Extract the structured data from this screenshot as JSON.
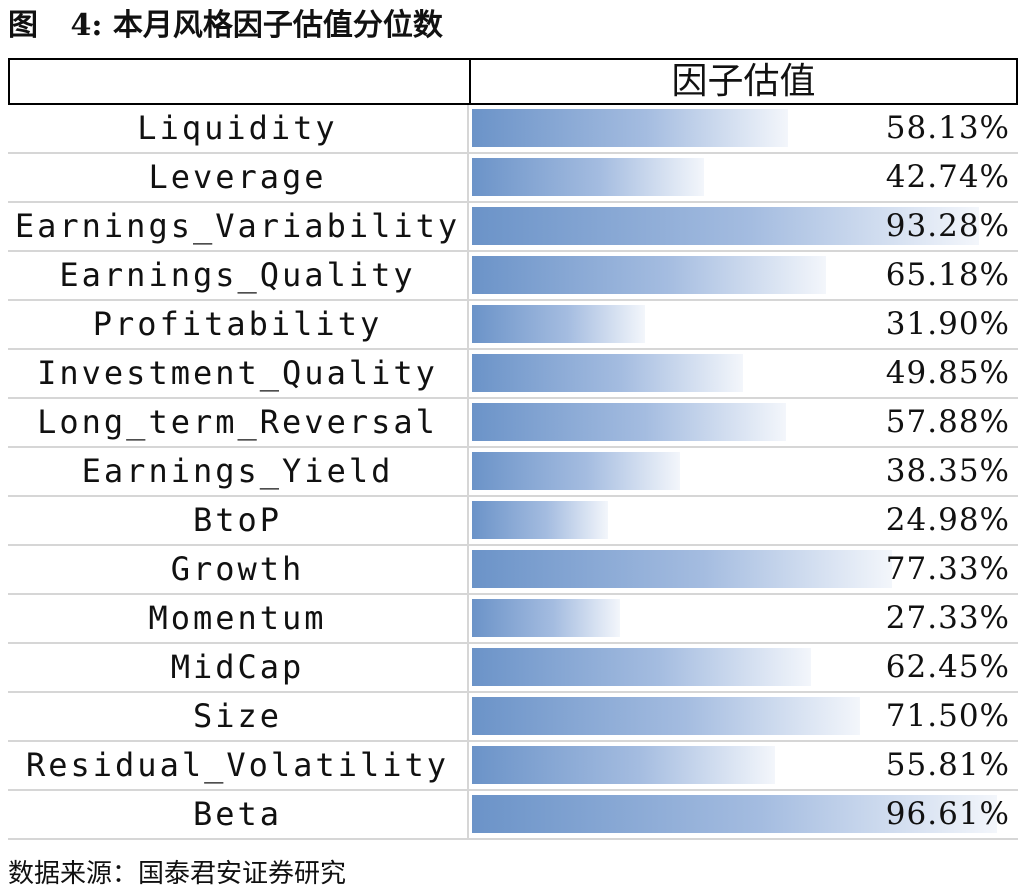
{
  "figure": {
    "label": "图",
    "number": "4:",
    "title": "本月风格因子估值分位数"
  },
  "footer": {
    "source": "数据来源：国泰君安证券研究"
  },
  "chart_data": {
    "type": "bar",
    "orientation": "horizontal",
    "title": "本月风格因子估值分位数",
    "column_header": "因子估值",
    "categories": [
      "Liquidity",
      "Leverage",
      "Earnings_Variability",
      "Earnings_Quality",
      "Profitability",
      "Investment_Quality",
      "Long_term_Reversal",
      "Earnings_Yield",
      "BtoP",
      "Growth",
      "Momentum",
      "MidCap",
      "Size",
      "Residual_Volatility",
      "Beta"
    ],
    "values": [
      58.13,
      42.74,
      93.28,
      65.18,
      31.9,
      49.85,
      57.88,
      38.35,
      24.98,
      77.33,
      27.33,
      62.45,
      71.5,
      55.81,
      96.61
    ],
    "value_labels": [
      "58.13%",
      "42.74%",
      "93.28%",
      "65.18%",
      "31.90%",
      "49.85%",
      "57.88%",
      "38.35%",
      "24.98%",
      "77.33%",
      "27.33%",
      "62.45%",
      "71.50%",
      "55.81%",
      "96.61%"
    ],
    "unit": "%",
    "xlim": [
      0,
      100
    ],
    "bar_color_start": "#6b93c8",
    "bar_color_end": "#f3f6fb"
  }
}
